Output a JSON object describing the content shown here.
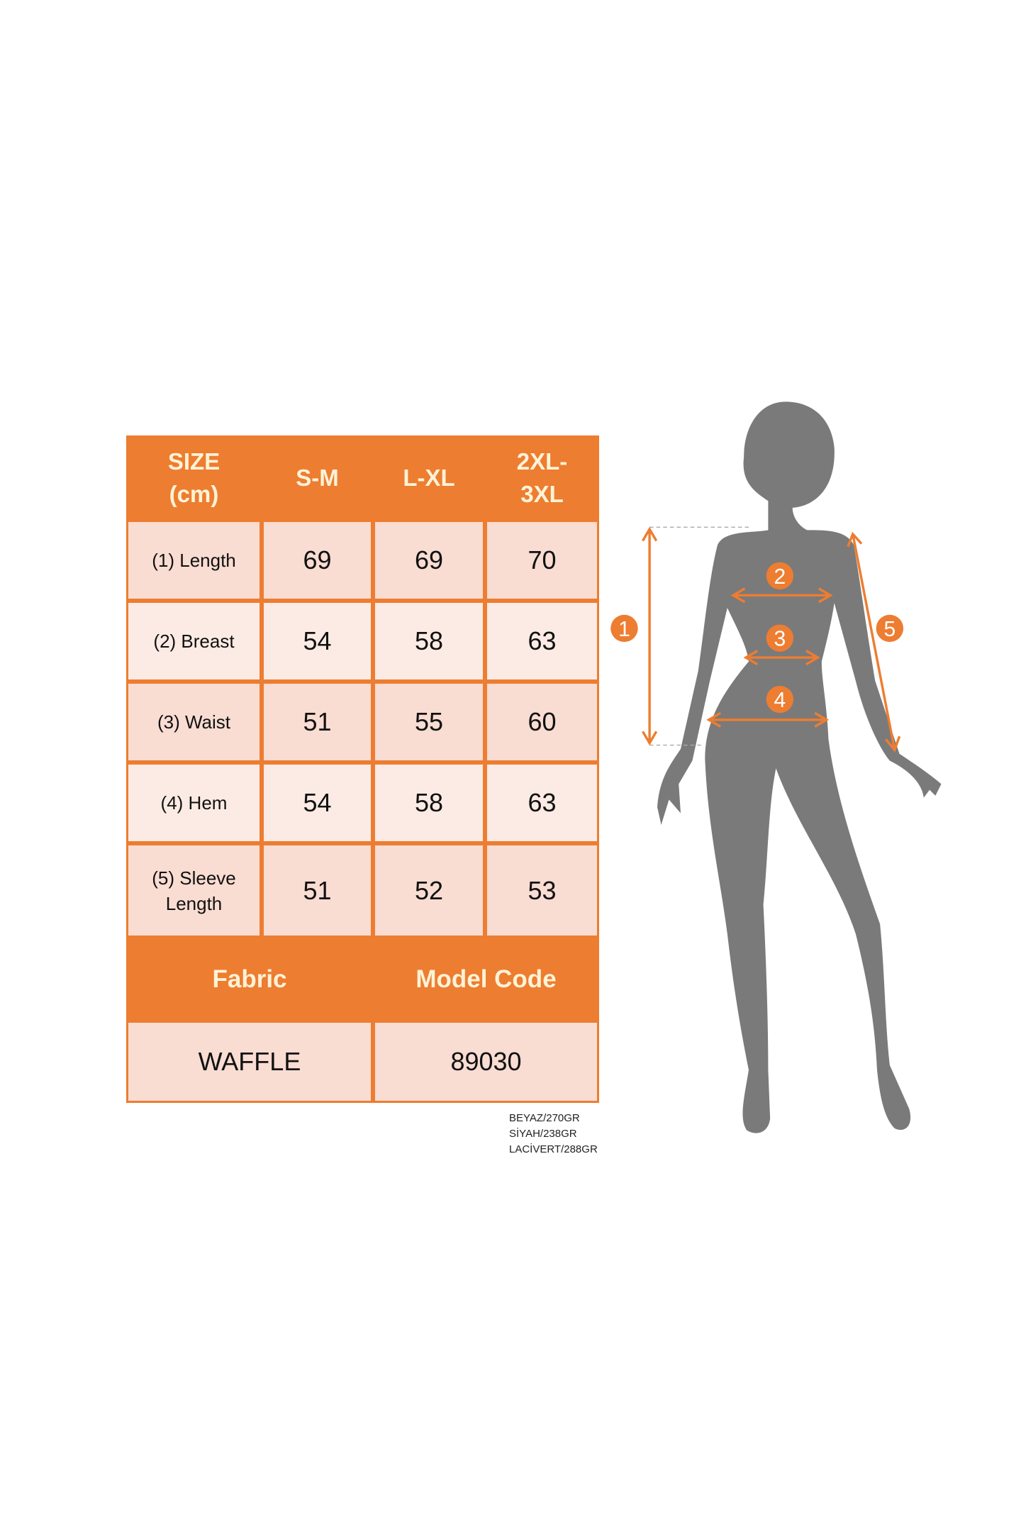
{
  "table": {
    "header": [
      "SIZE\n(cm)",
      "S-M",
      "L-XL",
      "2XL-\n3XL"
    ],
    "rows": [
      {
        "label": "(1) Length",
        "values": [
          "69",
          "69",
          "70"
        ]
      },
      {
        "label": "(2) Breast",
        "values": [
          "54",
          "58",
          "63"
        ]
      },
      {
        "label": "(3) Waist",
        "values": [
          "51",
          "55",
          "60"
        ]
      },
      {
        "label": "(4) Hem",
        "values": [
          "54",
          "58",
          "63"
        ]
      },
      {
        "label": "(5) Sleeve\nLength",
        "values": [
          "51",
          "52",
          "53"
        ]
      }
    ],
    "fabric_label": "Fabric",
    "model_code_label": "Model Code",
    "fabric_value": "WAFFLE",
    "model_code_value": "89030"
  },
  "notes": [
    "BEYAZ/270GR",
    "SİYAH/238GR",
    "LACİVERT/288GR"
  ],
  "figure": {
    "markers": [
      "1",
      "2",
      "3",
      "4",
      "5"
    ]
  },
  "colors": {
    "accent": "#ED7D31",
    "cell_dark": "#F9DCD2",
    "cell_light": "#FCEBE4",
    "header_text": "#FFF3D6",
    "silhouette": "#7A7A7A"
  }
}
